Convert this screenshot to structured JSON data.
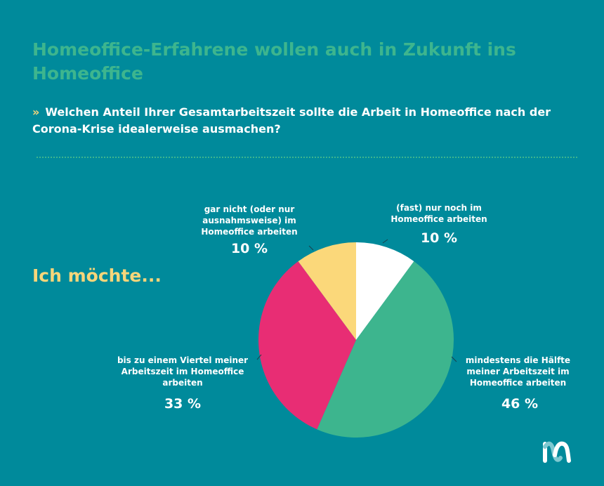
{
  "header": {
    "title": "Homeoffice-Erfahrene wollen auch in Zukunft ins Homeoffice",
    "question_icon": "double-chevron-right-icon",
    "question": "Welchen Anteil Ihrer Gesamtarbeitszeit sollte die Arbeit in Homeoffice nach der Corona-Krise idealerweise ausmachen?"
  },
  "lead_text": "Ich möchte...",
  "chart_data": {
    "type": "pie",
    "title": "Homeoffice-Erfahrene wollen auch in Zukunft ins Homeoffice",
    "unit": "%",
    "slices": [
      {
        "label": "(fast) nur noch im Homeoffice arbeiten",
        "value": 10,
        "display": "10 %",
        "color": "#ffffff"
      },
      {
        "label": "mindestens die Hälfte meiner Arbeitszeit im Homeoffice arbeiten",
        "value": 46,
        "display": "46 %",
        "color": "#3db58e"
      },
      {
        "label": "bis zu einem Viertel meiner Arbeitszeit im Homeoffice arbeiten",
        "value": 33,
        "display": "33 %",
        "color": "#e82d74"
      },
      {
        "label": "gar nicht (oder nur ausnahmsweise) im Homeoffice arbeiten",
        "value": 10,
        "display": "10 %",
        "color": "#fbd87a"
      }
    ]
  },
  "colors": {
    "background": "#008a9b",
    "accent_green": "#3db58e",
    "accent_yellow": "#f7d57a"
  }
}
